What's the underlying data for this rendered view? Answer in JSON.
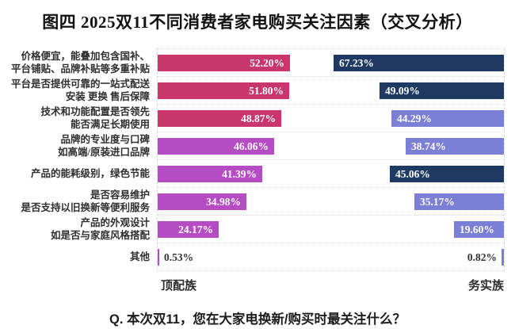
{
  "title": "图四  2025双11不同消费者家电购买关注因素（交叉分析）",
  "question": "Q. 本次双11，您在大家电换新/购买时最关注什么？",
  "colors": {
    "left_dark": "#c9366c",
    "left_light": "#b54cc4",
    "right_dark": "#1e3a63",
    "right_light": "#7b7fd6",
    "grid": "#d9d9d9",
    "text_dark": "#2e2e2e",
    "value_text_inside": "#ffffff",
    "value_text_outside": "#333333"
  },
  "chart_data": {
    "type": "bar",
    "subtype": "mirrored-butterfly-horizontal",
    "title": "图四  2025双11不同消费者家电购买关注因素（交叉分析）",
    "xlabel": "",
    "ylabel": "",
    "grid": "dotted-row-separators",
    "legend_position": "bottom",
    "axis_range_per_side": [
      0,
      68
    ],
    "categories": [
      [
        "价格便宜，能叠加包含国补、",
        "平台铺贴、品牌补贴等多重补贴"
      ],
      [
        "平台是否提供可靠的一站式配送",
        "安装 更换 售后保障"
      ],
      [
        "技术和功能配置是否领先",
        "能否满足长期使用"
      ],
      [
        "品牌的专业度与口碑",
        "如高端/原装进口品牌"
      ],
      [
        "产品的能耗级别，绿色节能"
      ],
      [
        "是否容易维护",
        "是否支持以旧换新等便利服务"
      ],
      [
        "产品的外观设计",
        "如是否与家庭风格搭配"
      ],
      [
        "其他"
      ]
    ],
    "series": [
      {
        "name": "顶配族",
        "side": "left",
        "values": [
          52.2,
          51.8,
          48.87,
          46.06,
          41.39,
          34.98,
          24.17,
          0.53
        ],
        "labels": [
          "52.20%",
          "51.80%",
          "48.87%",
          "46.06%",
          "41.39%",
          "34.98%",
          "24.17%",
          "0.53%"
        ],
        "palette": [
          "#c9366c",
          "#c9366c",
          "#c9366c",
          "#b54cc4",
          "#b54cc4",
          "#b54cc4",
          "#b54cc4",
          "#b54cc4"
        ]
      },
      {
        "name": "务实族",
        "side": "right",
        "values": [
          67.23,
          49.09,
          44.29,
          38.74,
          45.06,
          35.17,
          19.6,
          0.82
        ],
        "labels": [
          "67.23%",
          "49.09%",
          "44.29%",
          "38.74%",
          "45.06%",
          "35.17%",
          "19.60%",
          "0.82%"
        ],
        "palette": [
          "#1e3a63",
          "#1e3a63",
          "#7b7fd6",
          "#7b7fd6",
          "#1e3a63",
          "#7b7fd6",
          "#7b7fd6",
          "#7b7fd6"
        ]
      }
    ]
  }
}
